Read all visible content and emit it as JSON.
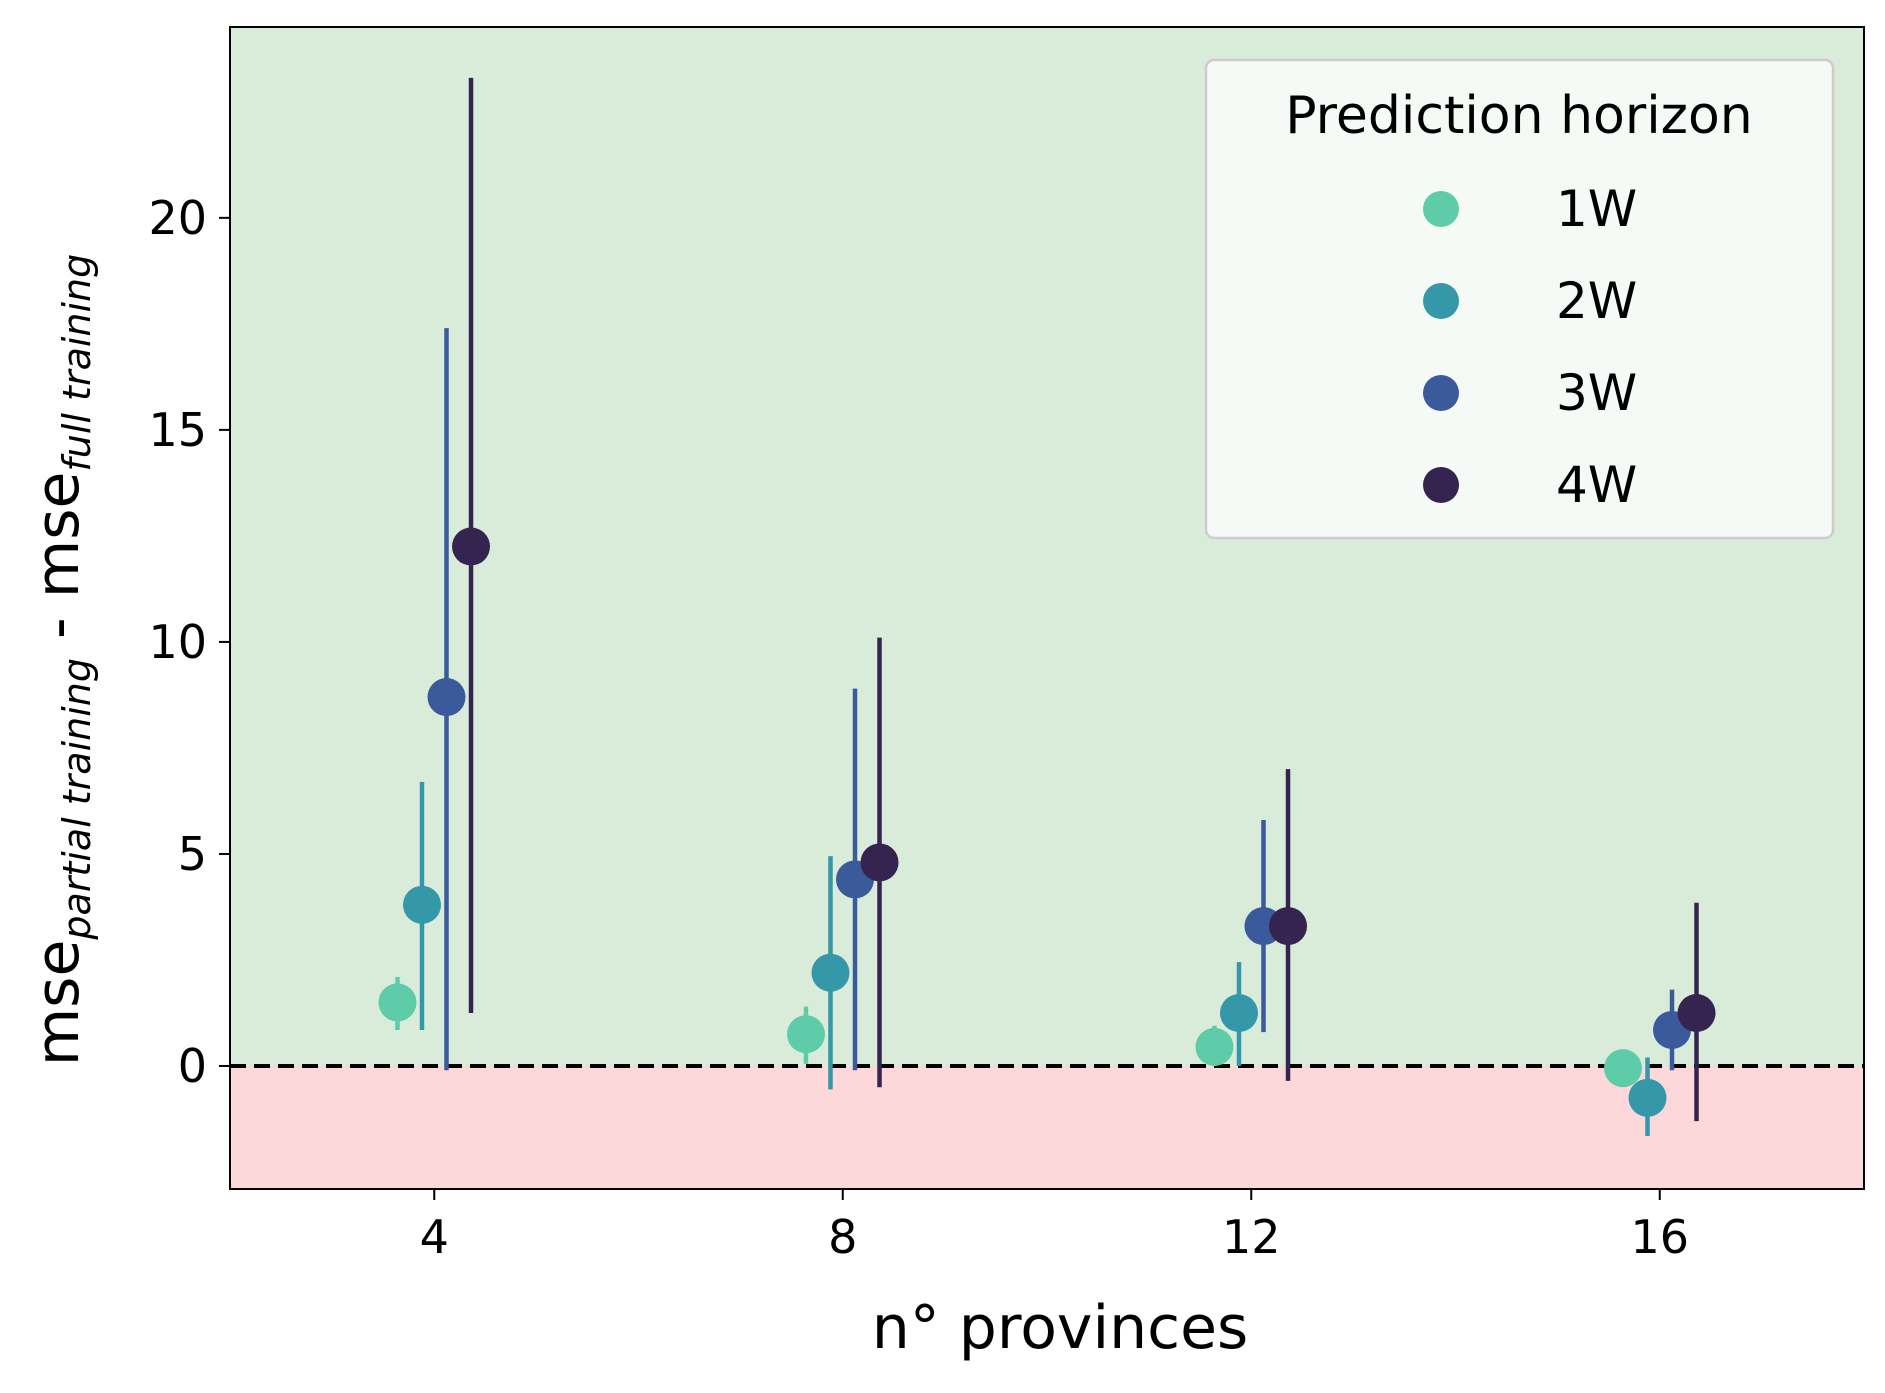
{
  "chart_data": {
    "type": "scatter",
    "subtype": "point-plot-with-error-bars",
    "xlabel": "n° provinces",
    "ylabel": {
      "base1": "mse",
      "sub1": "partial training",
      "mid": " - ",
      "base2": "mse",
      "sub2": "full training"
    },
    "categories": [
      "4",
      "8",
      "12",
      "16"
    ],
    "xlim": [
      2,
      18
    ],
    "ylim": [
      -2.9,
      24.5
    ],
    "yticks": [
      0,
      5,
      10,
      15,
      20
    ],
    "grid": false,
    "reference_line": {
      "y": 0,
      "style": "dashed",
      "color": "#000000"
    },
    "background_bands": [
      {
        "from": 0,
        "to": 24.5,
        "color": "#d9ecda"
      },
      {
        "from": -2.9,
        "to": 0,
        "color": "#fdd8da"
      }
    ],
    "legend": {
      "title": "Prediction horizon",
      "placement": "top-right"
    },
    "series": [
      {
        "name": "1W",
        "color": "#5ecca8",
        "x": [
          4,
          8,
          12,
          16
        ],
        "values": [
          1.5,
          0.75,
          0.45,
          -0.05
        ],
        "err_low": [
          0.85,
          0.05,
          0.0,
          -0.2
        ],
        "err_high": [
          2.1,
          1.4,
          0.95,
          0.1
        ]
      },
      {
        "name": "2W",
        "color": "#3598a8",
        "x": [
          4,
          8,
          12,
          16
        ],
        "values": [
          3.8,
          2.2,
          1.25,
          -0.75
        ],
        "err_low": [
          0.85,
          -0.55,
          0.0,
          -1.65
        ],
        "err_high": [
          6.7,
          4.95,
          2.45,
          0.2
        ]
      },
      {
        "name": "3W",
        "color": "#3a5a9c",
        "x": [
          4,
          8,
          12,
          16
        ],
        "values": [
          8.7,
          4.4,
          3.3,
          0.85
        ],
        "err_low": [
          -0.1,
          -0.1,
          0.8,
          -0.1
        ],
        "err_high": [
          17.4,
          8.9,
          5.8,
          1.8
        ]
      },
      {
        "name": "4W",
        "color": "#35244f",
        "x": [
          4,
          8,
          12,
          16
        ],
        "values": [
          12.25,
          4.8,
          3.3,
          1.25
        ],
        "err_low": [
          1.25,
          -0.5,
          -0.35,
          -1.3
        ],
        "err_high": [
          23.3,
          10.1,
          7.0,
          3.85
        ]
      }
    ]
  }
}
